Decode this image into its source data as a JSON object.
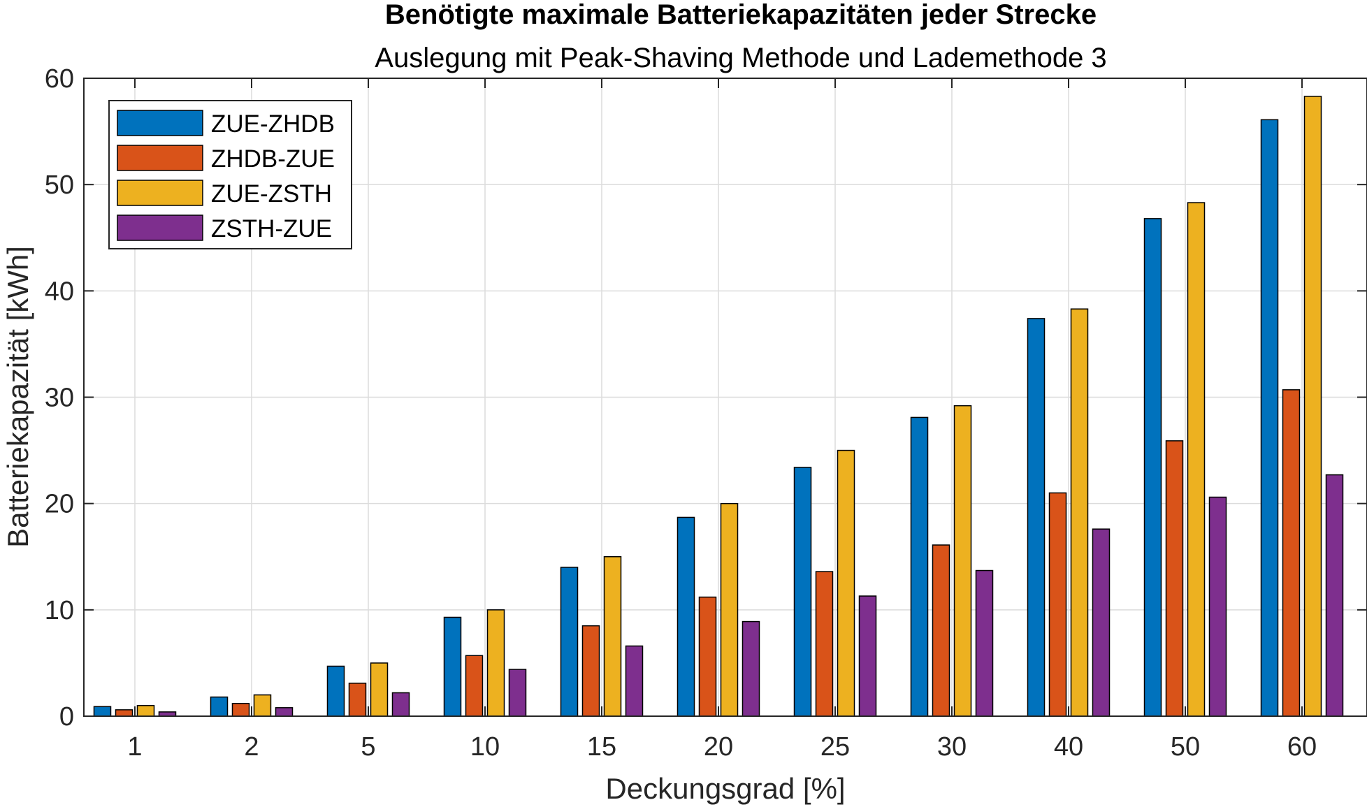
{
  "chart_data": {
    "type": "bar",
    "title": "Benötigte maximale Batteriekapazitäten jeder Strecke",
    "subtitle": "Auslegung mit Peak-Shaving Methode und Lademethode 3",
    "xlabel": "Deckungsgrad [%]",
    "ylabel": "Batteriekapazität [kWh]",
    "ylim": [
      0,
      60
    ],
    "yticks": [
      0,
      10,
      20,
      30,
      40,
      50,
      60
    ],
    "grid": true,
    "legend_position": "top-left",
    "categories": [
      "1",
      "2",
      "5",
      "10",
      "15",
      "20",
      "25",
      "30",
      "40",
      "50",
      "60"
    ],
    "series": [
      {
        "name": "ZUE-ZHDB",
        "color": "#0072BD",
        "values": [
          0.9,
          1.8,
          4.7,
          9.3,
          14.0,
          18.7,
          23.4,
          28.1,
          37.4,
          46.8,
          56.1
        ]
      },
      {
        "name": "ZHDB-ZUE",
        "color": "#D95319",
        "values": [
          0.6,
          1.2,
          3.1,
          5.7,
          8.5,
          11.2,
          13.6,
          16.1,
          21.0,
          25.9,
          30.7
        ]
      },
      {
        "name": "ZUE-ZSTH",
        "color": "#EDB120",
        "values": [
          1.0,
          2.0,
          5.0,
          10.0,
          15.0,
          20.0,
          25.0,
          29.2,
          38.3,
          48.3,
          58.3
        ]
      },
      {
        "name": "ZSTH-ZUE",
        "color": "#7E2F8E",
        "values": [
          0.4,
          0.8,
          2.2,
          4.4,
          6.6,
          8.9,
          11.3,
          13.7,
          17.6,
          20.6,
          22.7
        ]
      }
    ]
  }
}
